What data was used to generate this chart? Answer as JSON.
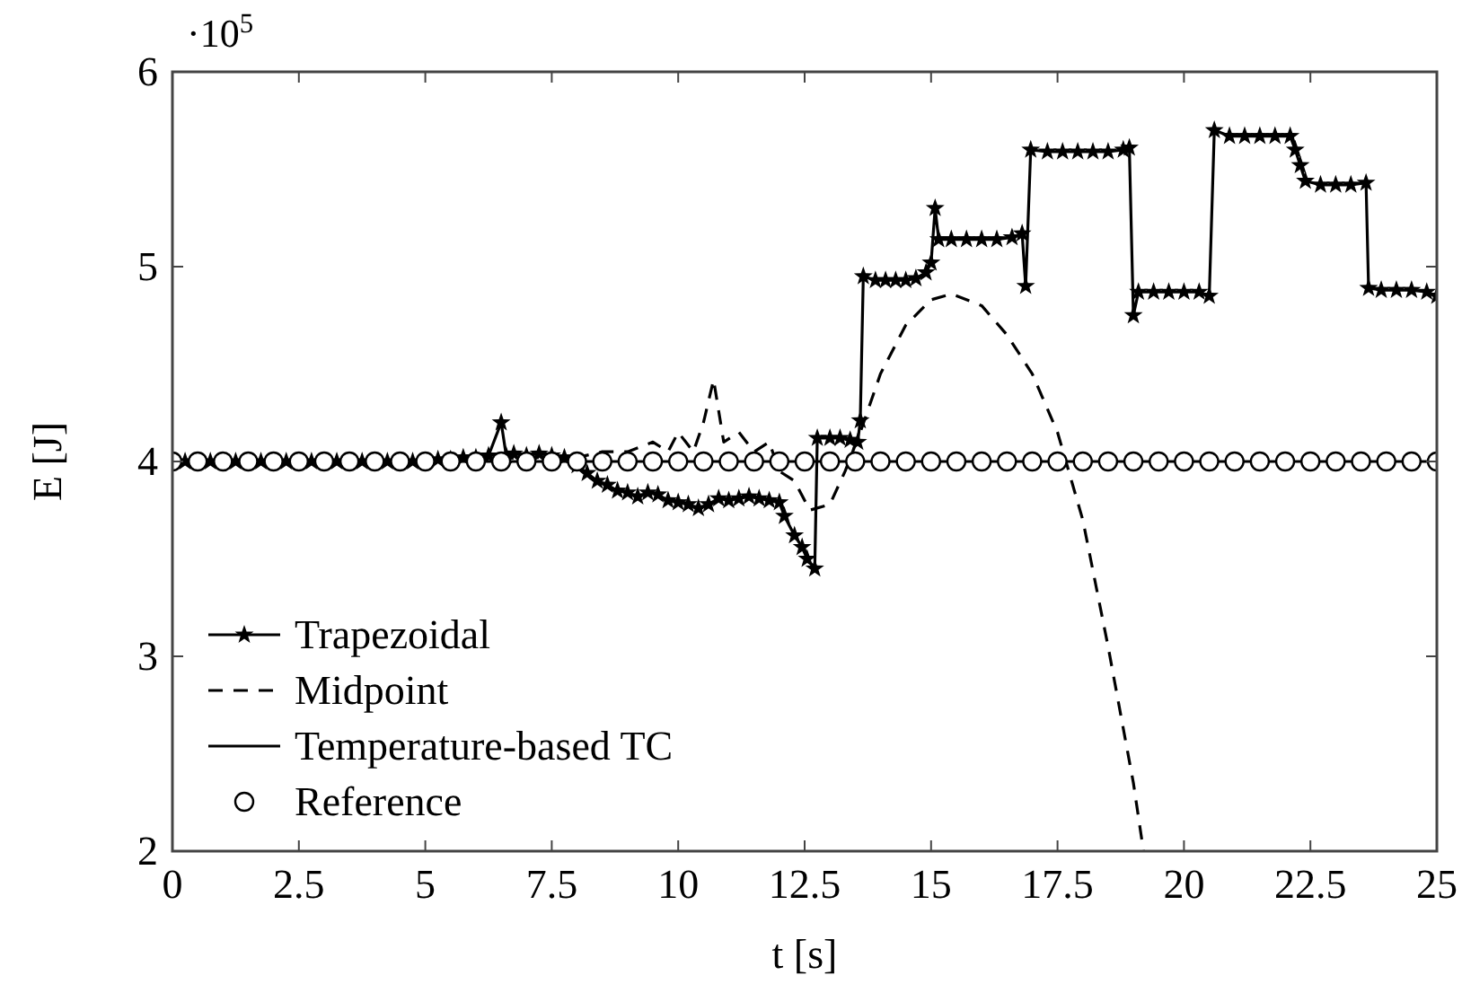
{
  "chart_data": {
    "type": "line",
    "xlabel": "t [s]",
    "ylabel": "E [J]",
    "annotations": [
      "·10$^{5}$"
    ],
    "xlim": [
      0,
      25
    ],
    "ylim": [
      2,
      6
    ],
    "xticks": [
      0,
      2.5,
      5,
      7.5,
      10,
      12.5,
      15,
      17.5,
      20,
      22.5,
      25
    ],
    "yticks": [
      2,
      3,
      4,
      5,
      6
    ],
    "grid": false,
    "legend": "bottom left",
    "series": [
      {
        "name": "Trapezoidal",
        "color": "#000000",
        "marker": "star",
        "line_style": "solid",
        "x": [
          0,
          0.25,
          0.5,
          0.75,
          1,
          1.25,
          1.5,
          1.75,
          2,
          2.25,
          2.5,
          2.75,
          3,
          3.25,
          3.5,
          3.75,
          4,
          4.25,
          4.5,
          4.75,
          5,
          5.25,
          5.5,
          5.75,
          6,
          6.25,
          6.5,
          6.6,
          6.75,
          7,
          7.25,
          7.5,
          7.75,
          8,
          8.2,
          8.4,
          8.6,
          8.8,
          9,
          9.2,
          9.4,
          9.6,
          9.8,
          10,
          10.2,
          10.4,
          10.6,
          10.8,
          11,
          11.2,
          11.4,
          11.6,
          11.8,
          12,
          12.1,
          12.3,
          12.45,
          12.55,
          12.7,
          12.75,
          13,
          13.2,
          13.4,
          13.55,
          13.6,
          13.66,
          13.9,
          14.1,
          14.3,
          14.5,
          14.7,
          14.9,
          15,
          15.08,
          15.15,
          15.4,
          15.7,
          16,
          16.3,
          16.6,
          16.8,
          16.87,
          16.97,
          17.3,
          17.6,
          17.9,
          18.2,
          18.5,
          18.8,
          18.92,
          19,
          19.1,
          19.4,
          19.7,
          20,
          20.3,
          20.5,
          20.6,
          20.9,
          21.2,
          21.5,
          21.8,
          22.1,
          22.2,
          22.3,
          22.4,
          22.7,
          23,
          23.3,
          23.6,
          23.65,
          23.9,
          24.2,
          24.5,
          24.8,
          25
        ],
        "values": [
          4,
          4,
          4,
          4,
          4,
          4,
          4,
          4,
          4,
          4,
          4,
          4,
          4,
          4,
          4,
          4,
          4,
          4,
          4,
          4,
          4,
          4.01,
          4.01,
          4.02,
          4.02,
          4.03,
          4.2,
          4.03,
          4.04,
          4.03,
          4.04,
          4.03,
          4.02,
          3.98,
          3.94,
          3.9,
          3.88,
          3.85,
          3.84,
          3.82,
          3.84,
          3.83,
          3.8,
          3.79,
          3.78,
          3.76,
          3.78,
          3.81,
          3.8,
          3.81,
          3.82,
          3.81,
          3.8,
          3.79,
          3.72,
          3.62,
          3.56,
          3.5,
          3.45,
          4.12,
          4.12,
          4.12,
          4.11,
          4.1,
          4.21,
          4.95,
          4.93,
          4.93,
          4.93,
          4.93,
          4.94,
          4.97,
          5.02,
          5.3,
          5.14,
          5.14,
          5.14,
          5.14,
          5.14,
          5.15,
          5.17,
          4.9,
          5.6,
          5.59,
          5.59,
          5.59,
          5.59,
          5.59,
          5.6,
          5.61,
          4.75,
          4.87,
          4.87,
          4.87,
          4.87,
          4.87,
          4.85,
          5.7,
          5.67,
          5.67,
          5.67,
          5.67,
          5.67,
          5.6,
          5.52,
          5.44,
          5.42,
          5.42,
          5.42,
          5.43,
          4.89,
          4.88,
          4.88,
          4.88,
          4.87,
          4.85
        ]
      },
      {
        "name": "Midpoint",
        "color": "#000000",
        "marker": "none",
        "line_style": "dashed",
        "x": [
          0,
          2,
          4,
          6,
          7,
          8,
          8.5,
          9,
          9.5,
          9.8,
          10,
          10.3,
          10.5,
          10.7,
          10.9,
          11.2,
          11.5,
          11.8,
          12,
          12.3,
          12.6,
          13,
          13.3,
          13.6,
          14,
          14.5,
          15,
          15.4,
          16,
          16.5,
          17,
          17.5,
          18,
          18.5,
          19,
          19.2
        ],
        "values": [
          4,
          4,
          4,
          4.01,
          4.02,
          4.02,
          4.05,
          4.05,
          4.1,
          4.05,
          4.15,
          4.05,
          4.2,
          4.42,
          4.1,
          4.15,
          4.05,
          4.1,
          3.95,
          3.9,
          3.75,
          3.78,
          3.95,
          4.15,
          4.45,
          4.7,
          4.83,
          4.86,
          4.8,
          4.65,
          4.45,
          4.15,
          3.7,
          3.05,
          2.35,
          2
        ]
      },
      {
        "name": "Temperature-based TC",
        "color": "#000000",
        "marker": "none",
        "line_style": "solid",
        "x": [
          0,
          25
        ],
        "values": [
          4,
          4
        ]
      },
      {
        "name": "Reference",
        "color": "#000000",
        "type": "scatter",
        "marker": "circle",
        "x": [
          0,
          0.5,
          1,
          1.5,
          2,
          2.5,
          3,
          3.5,
          4,
          4.5,
          5,
          5.5,
          6,
          6.5,
          7,
          7.5,
          8,
          8.5,
          9,
          9.5,
          10,
          10.5,
          11,
          11.5,
          12,
          12.5,
          13,
          13.5,
          14,
          14.5,
          15,
          15.5,
          16,
          16.5,
          17,
          17.5,
          18,
          18.5,
          19,
          19.5,
          20,
          20.5,
          21,
          21.5,
          22,
          22.5,
          23,
          23.5,
          24,
          24.5,
          25
        ],
        "values": [
          4,
          4,
          4,
          4,
          4,
          4,
          4,
          4,
          4,
          4,
          4,
          4,
          4,
          4,
          4,
          4,
          4,
          4,
          4,
          4,
          4,
          4,
          4,
          4,
          4,
          4,
          4,
          4,
          4,
          4,
          4,
          4,
          4,
          4,
          4,
          4,
          4,
          4,
          4,
          4,
          4,
          4,
          4,
          4,
          4,
          4,
          4,
          4,
          4,
          4,
          4
        ]
      }
    ]
  }
}
